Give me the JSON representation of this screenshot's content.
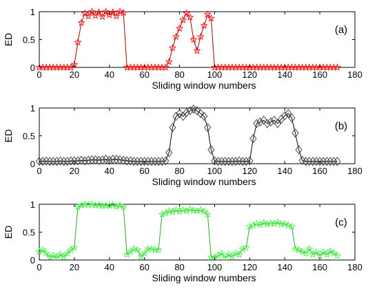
{
  "chart_data": [
    {
      "type": "line",
      "panel_label": "(a)",
      "xlabel": "Sliding window numbers",
      "ylabel": "ED",
      "xlim": [
        0,
        180
      ],
      "ylim": [
        0,
        1
      ],
      "xticks": [
        "0",
        "20",
        "40",
        "60",
        "80",
        "100",
        "120",
        "140",
        "160",
        "180"
      ],
      "yticks": [
        "0",
        "0.5",
        "1"
      ],
      "grid": false,
      "marker": "star",
      "color": "#ff0000",
      "marker_color": "#ff0000",
      "line_color": "#990000",
      "series": [
        {
          "x": [
            0,
            2,
            4,
            6,
            8,
            10,
            12,
            14,
            16,
            18,
            20,
            22,
            24,
            26,
            28,
            30,
            32,
            34,
            36,
            38,
            40,
            42,
            44,
            46,
            48,
            50,
            52,
            54,
            56,
            58,
            60,
            62,
            64,
            66,
            68,
            70,
            72,
            74,
            76,
            78,
            80,
            82,
            84,
            86,
            88,
            90,
            92,
            94,
            96,
            98,
            100,
            102,
            104,
            106,
            108,
            110,
            112,
            114,
            116,
            118,
            120,
            122,
            124,
            126,
            128,
            130,
            132,
            134,
            136,
            138,
            140,
            142,
            144,
            146,
            148,
            150,
            152,
            154,
            156,
            158,
            160,
            162,
            164,
            166,
            168,
            170
          ],
          "y": [
            0,
            0,
            0,
            0,
            0,
            0,
            0,
            0,
            0,
            0,
            0.05,
            0.45,
            0.8,
            0.97,
            0.92,
            1,
            0.93,
            0.99,
            0.91,
            1,
            0.94,
            0.99,
            0.92,
            1,
            0.98,
            0,
            0,
            0,
            0,
            0,
            0,
            0,
            0,
            0,
            0,
            0,
            0,
            0.1,
            0.35,
            0.55,
            0.7,
            0.85,
            0.97,
            0.9,
            0.5,
            0.3,
            0.55,
            0.75,
            0.95,
            0.88,
            0,
            0,
            0,
            0,
            0,
            0,
            0,
            0,
            0,
            0,
            0,
            0,
            0,
            0,
            0,
            0,
            0,
            0,
            0,
            0,
            0,
            0,
            0,
            0,
            0,
            0,
            0,
            0,
            0,
            0,
            0,
            0,
            0,
            0,
            0,
            0
          ]
        }
      ]
    },
    {
      "type": "line",
      "panel_label": "(b)",
      "xlabel": "Sliding window numbers",
      "ylabel": "ED",
      "xlim": [
        0,
        180
      ],
      "ylim": [
        0,
        1
      ],
      "xticks": [
        "0",
        "20",
        "40",
        "60",
        "80",
        "100",
        "120",
        "140",
        "160",
        "180"
      ],
      "yticks": [
        "0",
        "0.5",
        "1"
      ],
      "grid": false,
      "marker": "diamond",
      "color": "#000000",
      "marker_color": "#333333",
      "line_color": "#000000",
      "series": [
        {
          "x": [
            0,
            2,
            4,
            6,
            8,
            10,
            12,
            14,
            16,
            18,
            20,
            22,
            24,
            26,
            28,
            30,
            32,
            34,
            36,
            38,
            40,
            42,
            44,
            46,
            48,
            50,
            52,
            54,
            56,
            58,
            60,
            62,
            64,
            66,
            68,
            70,
            72,
            74,
            76,
            78,
            80,
            82,
            84,
            86,
            88,
            90,
            92,
            94,
            96,
            98,
            100,
            102,
            104,
            106,
            108,
            110,
            112,
            114,
            116,
            118,
            120,
            122,
            124,
            126,
            128,
            130,
            132,
            134,
            136,
            138,
            140,
            142,
            144,
            146,
            148,
            150,
            152,
            154,
            156,
            158,
            160,
            162,
            164,
            166,
            168,
            170
          ],
          "y": [
            0.04,
            0.04,
            0.05,
            0.04,
            0.04,
            0.04,
            0.05,
            0.04,
            0.04,
            0.05,
            0.05,
            0.05,
            0.06,
            0.05,
            0.06,
            0.07,
            0.07,
            0.06,
            0.07,
            0.08,
            0.06,
            0.08,
            0.08,
            0.07,
            0.06,
            0.05,
            0.05,
            0.04,
            0.04,
            0.04,
            0.04,
            0.04,
            0.04,
            0.04,
            0.04,
            0.04,
            0.05,
            0.2,
            0.65,
            0.85,
            0.9,
            0.85,
            0.92,
            0.95,
            0.98,
            0.95,
            0.9,
            0.85,
            0.65,
            0.25,
            0.05,
            0.04,
            0.04,
            0.04,
            0.04,
            0.04,
            0.04,
            0.05,
            0.04,
            0.04,
            0.05,
            0.45,
            0.72,
            0.75,
            0.78,
            0.72,
            0.75,
            0.78,
            0.72,
            0.8,
            0.86,
            0.9,
            0.82,
            0.55,
            0.25,
            0.06,
            0.04,
            0.04,
            0.04,
            0.04,
            0.04,
            0.04,
            0.04,
            0.04,
            0.04,
            0.04
          ]
        }
      ]
    },
    {
      "type": "line",
      "panel_label": "(c)",
      "xlabel": "Sliding window numbers",
      "ylabel": "ED",
      "xlim": [
        0,
        180
      ],
      "ylim": [
        0,
        1
      ],
      "xticks": [
        "0",
        "20",
        "40",
        "60",
        "80",
        "100",
        "120",
        "140",
        "160",
        "180"
      ],
      "yticks": [
        "0",
        "0.5",
        "1"
      ],
      "grid": false,
      "marker": "star",
      "color": "#33cc33",
      "marker_color": "#44ee44",
      "line_color": "#22aa22",
      "series": [
        {
          "x": [
            0,
            2,
            4,
            6,
            8,
            10,
            12,
            14,
            16,
            18,
            20,
            22,
            24,
            26,
            28,
            30,
            32,
            34,
            36,
            38,
            40,
            42,
            44,
            46,
            48,
            50,
            52,
            54,
            56,
            58,
            60,
            62,
            64,
            66,
            68,
            70,
            72,
            74,
            76,
            78,
            80,
            82,
            84,
            86,
            88,
            90,
            92,
            94,
            96,
            98,
            100,
            102,
            104,
            106,
            108,
            110,
            112,
            114,
            116,
            118,
            120,
            122,
            124,
            126,
            128,
            130,
            132,
            134,
            136,
            138,
            140,
            142,
            144,
            146,
            148,
            150,
            152,
            154,
            156,
            158,
            160,
            162,
            164,
            166,
            168,
            170
          ],
          "y": [
            0.15,
            0.18,
            0.12,
            0.05,
            0.08,
            0.04,
            0.1,
            0.06,
            0.12,
            0.18,
            0.22,
            0.95,
            0.98,
            1,
            0.99,
            1,
            0.98,
            0.99,
            0.97,
            0.98,
            0.97,
            0.99,
            0.96,
            0.98,
            0.95,
            0.1,
            0.15,
            0.2,
            0.18,
            0.06,
            0.12,
            0.2,
            0.2,
            0.18,
            0.18,
            0.82,
            0.84,
            0.88,
            0.86,
            0.9,
            0.87,
            0.9,
            0.88,
            0.91,
            0.89,
            0.88,
            0.9,
            0.87,
            0.82,
            0.05,
            0.05,
            0.08,
            0.12,
            0.04,
            0.1,
            0.06,
            0.12,
            0.1,
            0.2,
            0.22,
            0.6,
            0.62,
            0.65,
            0.63,
            0.67,
            0.64,
            0.66,
            0.65,
            0.68,
            0.64,
            0.65,
            0.62,
            0.6,
            0.2,
            0.18,
            0.15,
            0.12,
            0.2,
            0.1,
            0.14,
            0.08,
            0.14,
            0.1,
            0.16,
            0.12,
            0.08
          ]
        }
      ]
    }
  ]
}
